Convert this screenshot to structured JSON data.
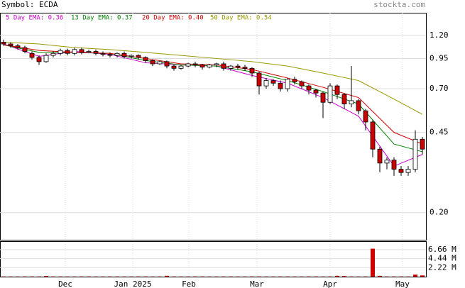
{
  "chart_data": {
    "type": "candlestick",
    "title": "Symbol: ECDA",
    "source": "stockta.com",
    "log_y": true,
    "grid": true,
    "up_color": "#ffffff",
    "down_color": "#cc0000",
    "xlim": [
      -0.5,
      59.5
    ],
    "xticks": [
      {
        "value": 8.7,
        "label": "Dec"
      },
      {
        "value": 18.2,
        "label": "Jan 2025"
      },
      {
        "value": 26.1,
        "label": "Feb"
      },
      {
        "value": 35.7,
        "label": "Mar"
      },
      {
        "value": 46,
        "label": "Apr"
      },
      {
        "value": 56.2,
        "label": "May"
      }
    ],
    "ylim": [
      0.152,
      1.508
    ],
    "yticks": [
      {
        "value": 1.2,
        "label": "1.20"
      },
      {
        "value": 0.95,
        "label": "0.95"
      },
      {
        "value": 0.7,
        "label": "0.70"
      },
      {
        "value": 0.45,
        "label": "0.45"
      },
      {
        "value": 0.2,
        "label": "0.20"
      }
    ],
    "open": [
      1.12,
      1.1,
      1.08,
      1.06,
      1.0,
      0.96,
      0.92,
      0.98,
      1.0,
      1.03,
      1.0,
      1.04,
      1.01,
      1.02,
      1.0,
      0.99,
      0.98,
      1.0,
      0.97,
      0.98,
      0.96,
      0.93,
      0.9,
      0.92,
      0.88,
      0.86,
      0.88,
      0.9,
      0.89,
      0.87,
      0.89,
      0.9,
      0.86,
      0.88,
      0.87,
      0.86,
      0.82,
      0.72,
      0.76,
      0.74,
      0.7,
      0.77,
      0.75,
      0.72,
      0.69,
      0.67,
      0.61,
      0.72,
      0.66,
      0.6,
      0.62,
      0.56,
      0.5,
      0.38,
      0.33,
      0.34,
      0.31,
      0.3,
      0.31,
      0.42
    ],
    "high": [
      1.15,
      1.12,
      1.1,
      1.08,
      1.02,
      0.98,
      1.0,
      1.02,
      1.05,
      1.05,
      1.06,
      1.06,
      1.04,
      1.04,
      1.02,
      1.01,
      1.01,
      1.02,
      0.99,
      0.99,
      0.97,
      0.94,
      0.93,
      0.93,
      0.89,
      0.89,
      0.91,
      0.92,
      0.9,
      0.9,
      0.91,
      0.92,
      0.89,
      0.9,
      0.89,
      0.87,
      0.83,
      0.78,
      0.77,
      0.76,
      0.78,
      0.79,
      0.76,
      0.73,
      0.7,
      0.68,
      0.74,
      0.73,
      0.67,
      0.88,
      0.63,
      0.57,
      0.51,
      0.39,
      0.35,
      0.35,
      0.32,
      0.32,
      0.46,
      0.43
    ],
    "low": [
      1.08,
      1.06,
      1.04,
      1.0,
      0.94,
      0.89,
      0.91,
      0.96,
      0.98,
      0.98,
      0.98,
      0.99,
      1.0,
      0.98,
      0.97,
      0.96,
      0.96,
      0.95,
      0.95,
      0.94,
      0.91,
      0.88,
      0.89,
      0.86,
      0.84,
      0.85,
      0.87,
      0.87,
      0.85,
      0.86,
      0.87,
      0.84,
      0.84,
      0.85,
      0.84,
      0.79,
      0.66,
      0.7,
      0.72,
      0.68,
      0.68,
      0.73,
      0.7,
      0.66,
      0.64,
      0.52,
      0.6,
      0.63,
      0.57,
      0.58,
      0.54,
      0.46,
      0.35,
      0.3,
      0.31,
      0.29,
      0.29,
      0.29,
      0.3,
      0.36
    ],
    "close": [
      1.1,
      1.08,
      1.06,
      1.02,
      0.96,
      0.92,
      0.98,
      1.0,
      1.03,
      1.0,
      1.04,
      1.01,
      1.02,
      1.0,
      0.99,
      0.98,
      1.0,
      0.97,
      0.98,
      0.96,
      0.93,
      0.9,
      0.92,
      0.88,
      0.86,
      0.88,
      0.9,
      0.89,
      0.87,
      0.89,
      0.9,
      0.86,
      0.88,
      0.87,
      0.86,
      0.82,
      0.72,
      0.76,
      0.74,
      0.7,
      0.77,
      0.75,
      0.72,
      0.69,
      0.67,
      0.61,
      0.72,
      0.66,
      0.6,
      0.62,
      0.56,
      0.5,
      0.38,
      0.33,
      0.34,
      0.31,
      0.3,
      0.31,
      0.42,
      0.38
    ],
    "volume": [
      0.05,
      0.05,
      0.05,
      0.05,
      0.05,
      0.05,
      0.15,
      0.05,
      0.05,
      0.05,
      0.05,
      0.05,
      0.05,
      0.05,
      0.05,
      0.05,
      0.05,
      0.05,
      0.05,
      0.05,
      0.05,
      0.05,
      0.05,
      0.2,
      0.05,
      0.05,
      0.05,
      0.05,
      0.05,
      0.05,
      0.05,
      0.05,
      0.05,
      0.05,
      0.05,
      0.05,
      0.05,
      0.05,
      0.05,
      0.05,
      0.05,
      0.05,
      0.05,
      0.05,
      0.05,
      0.05,
      0.05,
      0.2,
      0.15,
      0.05,
      0.05,
      0.05,
      6.9,
      0.2,
      0.05,
      0.05,
      0.05,
      0.05,
      0.5,
      0.3
    ],
    "volume_color": "#cc0000",
    "vlim": [
      0,
      8.57
    ],
    "vticks": [
      {
        "value": 6.66,
        "label": "6.66 M"
      },
      {
        "value": 4.44,
        "label": "4.44 M"
      },
      {
        "value": 2.22,
        "label": "2.22 M"
      }
    ],
    "ema_x": [
      0,
      5,
      10,
      15,
      20,
      25,
      30,
      35,
      40,
      45,
      50,
      55,
      59
    ],
    "series": [
      {
        "name": "5 Day EMA: 0.36",
        "color": "#cc00cc",
        "values": [
          1.1,
          0.97,
          1.02,
          0.99,
          0.91,
          0.89,
          0.88,
          0.8,
          0.74,
          0.64,
          0.53,
          0.32,
          0.36
        ]
      },
      {
        "name": "13 Day EMA: 0.37",
        "color": "#008000",
        "values": [
          1.09,
          1.01,
          1.01,
          1.0,
          0.93,
          0.89,
          0.88,
          0.83,
          0.76,
          0.68,
          0.6,
          0.4,
          0.37
        ]
      },
      {
        "name": "20 Day EMA: 0.40",
        "color": "#cc0000",
        "values": [
          1.09,
          1.03,
          1.01,
          1.0,
          0.95,
          0.9,
          0.89,
          0.85,
          0.78,
          0.71,
          0.64,
          0.45,
          0.4
        ]
      },
      {
        "name": "50 Day EMA: 0.54",
        "color": "#999900",
        "values": [
          1.12,
          1.1,
          1.06,
          1.04,
          1.01,
          0.98,
          0.95,
          0.92,
          0.88,
          0.82,
          0.76,
          0.63,
          0.54
        ]
      }
    ]
  }
}
